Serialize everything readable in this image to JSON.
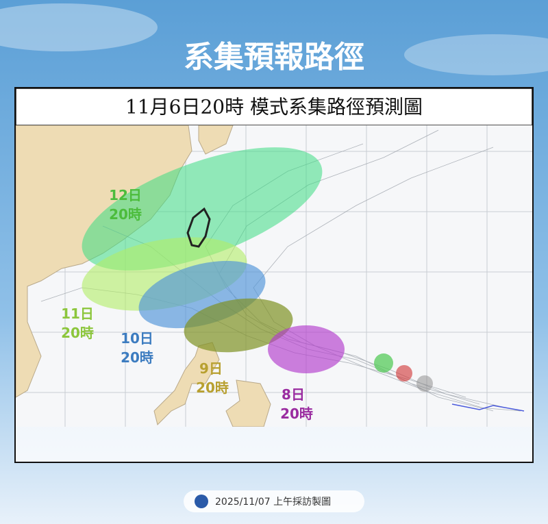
{
  "header": {
    "title": "系集預報路徑"
  },
  "panel": {
    "subtitle": "11月6日20時 模式系集路徑預測圖"
  },
  "labels": [
    {
      "day": "12日",
      "time": "20時"
    },
    {
      "day": "11日",
      "time": "20時"
    },
    {
      "day": "10日",
      "time": "20時"
    },
    {
      "day": "9日",
      "time": "20時"
    },
    {
      "day": "8日",
      "time": "20時"
    }
  ],
  "footer": {
    "text": "2025/11/07 上午採訪製圖"
  }
}
